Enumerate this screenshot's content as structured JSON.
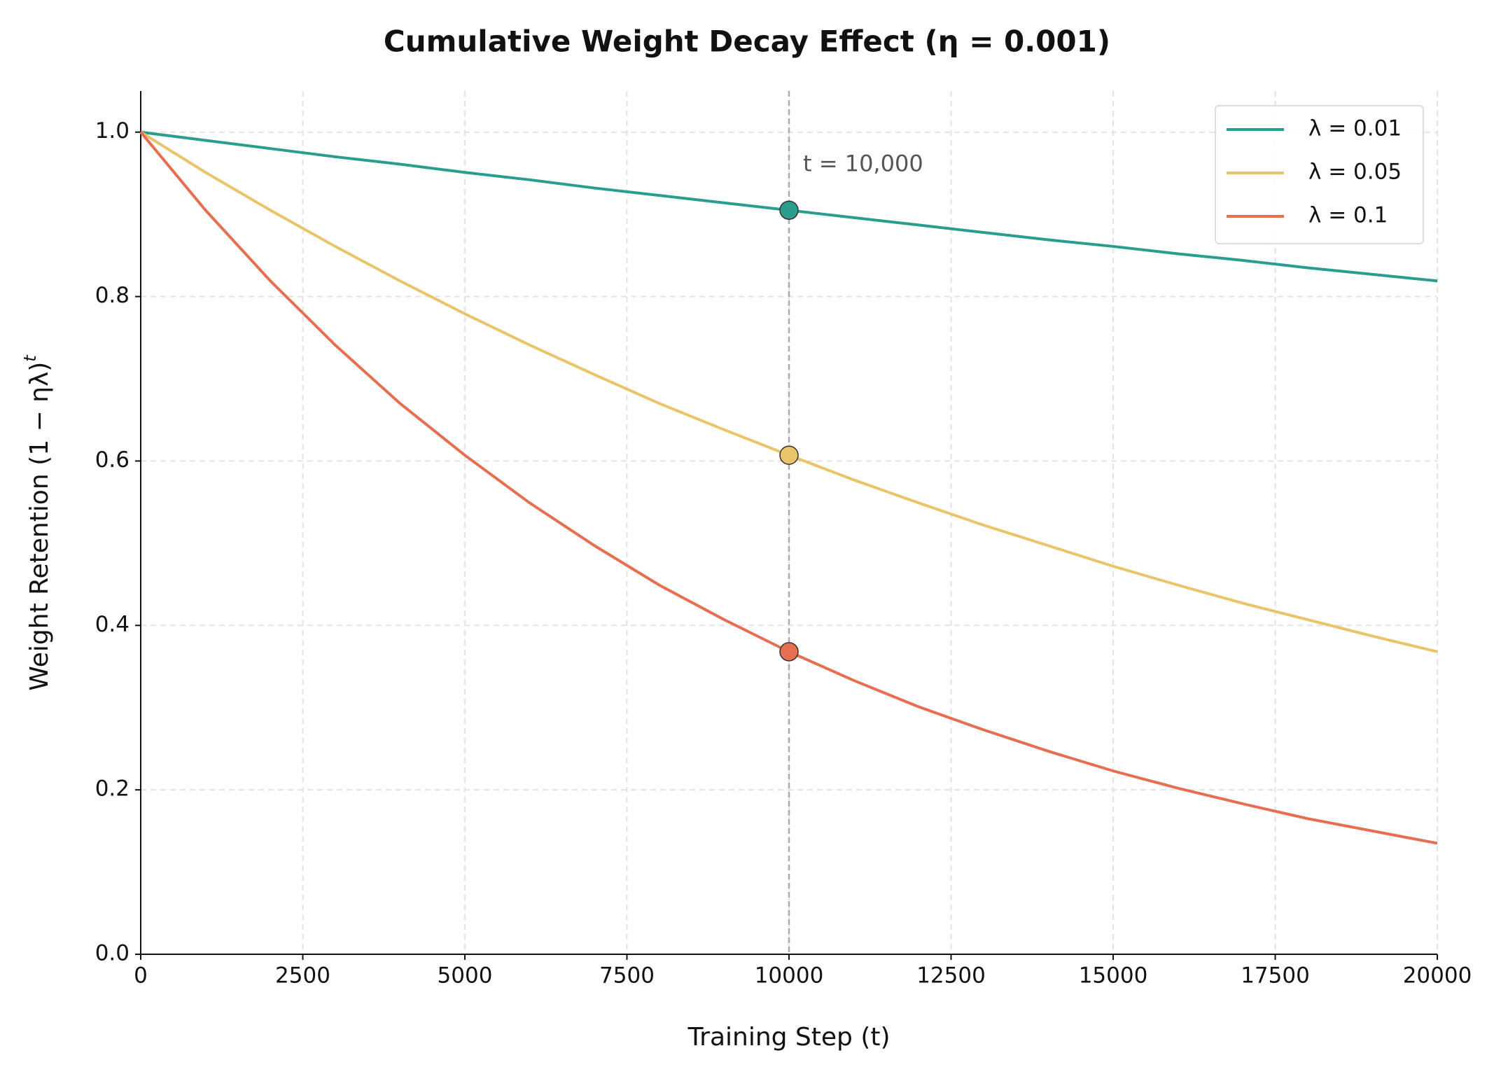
{
  "chart_data": {
    "type": "line",
    "title": "Cumulative Weight Decay Effect (η = 0.001)",
    "xlabel": "Training Step (t)",
    "ylabel": {
      "text": "Weight Retention (1 − ηλ)",
      "superscript": "t"
    },
    "x": [
      0,
      1000,
      2000,
      3000,
      4000,
      5000,
      6000,
      7000,
      8000,
      9000,
      10000,
      11000,
      12000,
      13000,
      14000,
      15000,
      16000,
      17000,
      18000,
      19000,
      20000
    ],
    "series": [
      {
        "name": "λ = 0.01",
        "color": "#2a9d8f",
        "values": [
          1,
          0.99,
          0.98,
          0.97,
          0.961,
          0.951,
          0.942,
          0.932,
          0.923,
          0.914,
          0.905,
          0.896,
          0.887,
          0.878,
          0.869,
          0.861,
          0.852,
          0.844,
          0.835,
          0.827,
          0.819
        ]
      },
      {
        "name": "λ = 0.05",
        "color": "#e9c46a",
        "values": [
          1,
          0.951,
          0.905,
          0.861,
          0.819,
          0.779,
          0.741,
          0.705,
          0.67,
          0.638,
          0.607,
          0.577,
          0.549,
          0.522,
          0.497,
          0.472,
          0.449,
          0.427,
          0.407,
          0.387,
          0.368
        ]
      },
      {
        "name": "λ = 0.1",
        "color": "#e76f51",
        "values": [
          1,
          0.905,
          0.819,
          0.741,
          0.67,
          0.607,
          0.549,
          0.497,
          0.449,
          0.407,
          0.368,
          0.333,
          0.301,
          0.273,
          0.247,
          0.223,
          0.202,
          0.183,
          0.165,
          0.15,
          0.135
        ]
      }
    ],
    "markers": {
      "x": 10000,
      "values": [
        0.905,
        0.607,
        0.368
      ]
    },
    "annotation": {
      "x": 10000,
      "label": "t = 10,000"
    },
    "xlim": [
      0,
      20000
    ],
    "xticks": [
      0,
      2500,
      5000,
      7500,
      10000,
      12500,
      15000,
      17500,
      20000
    ],
    "ylim": [
      0,
      1.05
    ],
    "yticks": [
      {
        "value": 0,
        "label": "0.0"
      },
      0.2,
      0.4,
      0.6,
      0.8,
      {
        "value": 1,
        "label": "1.0"
      }
    ],
    "grid": true,
    "legend": "upper right"
  }
}
